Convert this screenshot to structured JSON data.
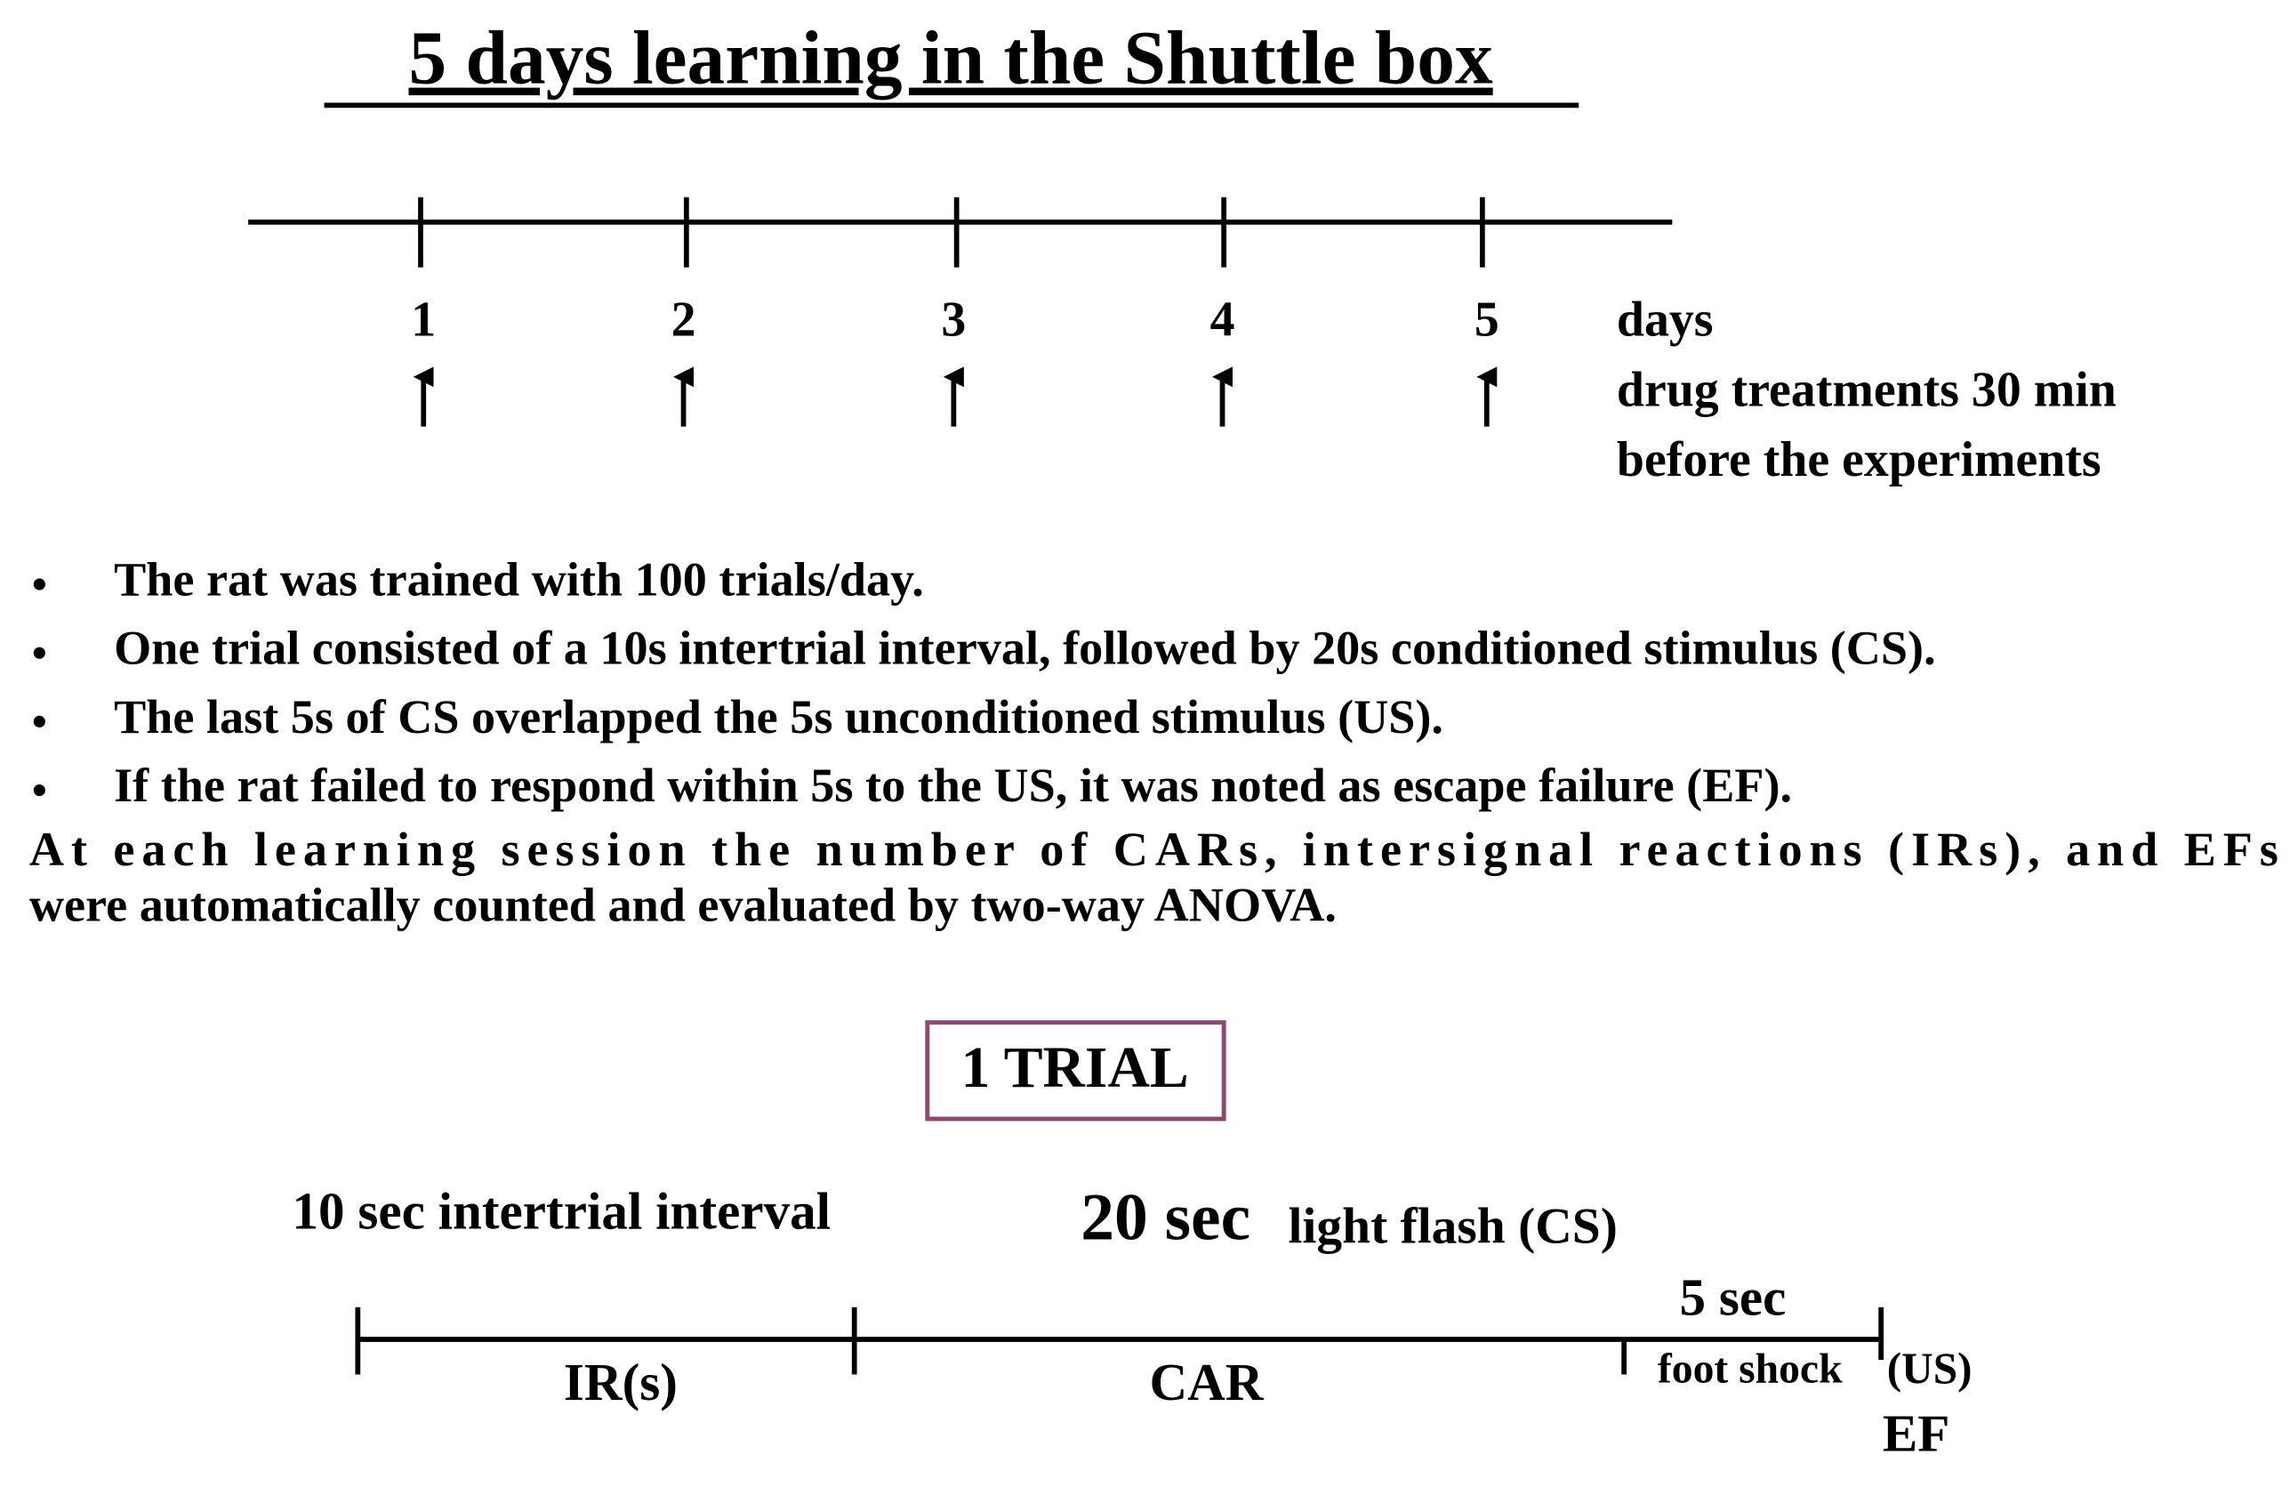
{
  "title": "5 days learning in the Shuttle box",
  "timeline": {
    "days": [
      "1",
      "2",
      "3",
      "4",
      "5"
    ],
    "unit": "days",
    "note": [
      "drug treatments 30 min",
      "before the experiments"
    ]
  },
  "bullets": [
    "The rat was trained with 100 trials/day.",
    "One trial consisted of a 10s intertrial interval, followed by 20s conditioned stimulus (CS).",
    "The last 5s of CS overlapped the 5s unconditioned stimulus (US).",
    "If the rat failed to respond within 5s to the US, it was noted as escape failure (EF)."
  ],
  "paragraph": [
    "At each learning session the number of CARs, intersignal reactions (IRs), and EFs",
    "were automatically counted and evaluated by two-way ANOVA."
  ],
  "trial": {
    "box": "1 TRIAL",
    "interval": "10 sec intertrial interval",
    "cs_duration": "20 sec",
    "cs_label": "light flash (CS)",
    "us_duration": "5 sec",
    "us_label": "foot shock",
    "us_tag": "(US)",
    "segments": [
      "IR(s)",
      "CAR",
      "EF"
    ]
  }
}
